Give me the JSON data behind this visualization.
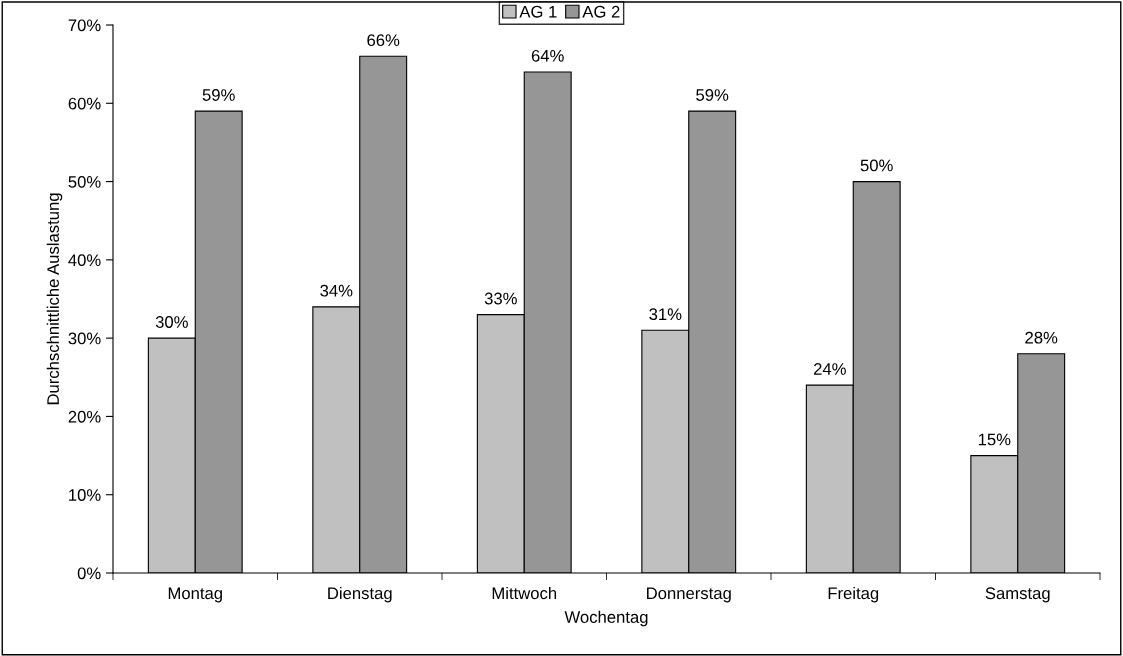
{
  "chart_data": {
    "type": "bar",
    "xlabel": "Wochentag",
    "ylabel": "Durchschnittliche Auslastung",
    "categories": [
      "Montag",
      "Dienstag",
      "Mittwoch",
      "Donnerstag",
      "Freitag",
      "Samstag"
    ],
    "series": [
      {
        "name": "AG 1",
        "color": "#c0c0c0",
        "values": [
          30,
          34,
          33,
          31,
          24,
          15
        ],
        "value_labels": [
          "30%",
          "34%",
          "33%",
          "31%",
          "24%",
          "15%"
        ]
      },
      {
        "name": "AG 2",
        "color": "#969696",
        "values": [
          59,
          66,
          64,
          59,
          50,
          28
        ],
        "value_labels": [
          "59%",
          "66%",
          "64%",
          "59%",
          "50%",
          "28%"
        ]
      }
    ],
    "ylim": [
      0,
      70
    ],
    "yticks": [
      {
        "value": 0,
        "label": "0%"
      },
      {
        "value": 10,
        "label": "10%"
      },
      {
        "value": 20,
        "label": "20%"
      },
      {
        "value": 30,
        "label": "30%"
      },
      {
        "value": 40,
        "label": "40%"
      },
      {
        "value": 50,
        "label": "50%"
      },
      {
        "value": 60,
        "label": "60%"
      },
      {
        "value": 70,
        "label": "70%"
      }
    ],
    "grid": false,
    "legend": "top"
  }
}
